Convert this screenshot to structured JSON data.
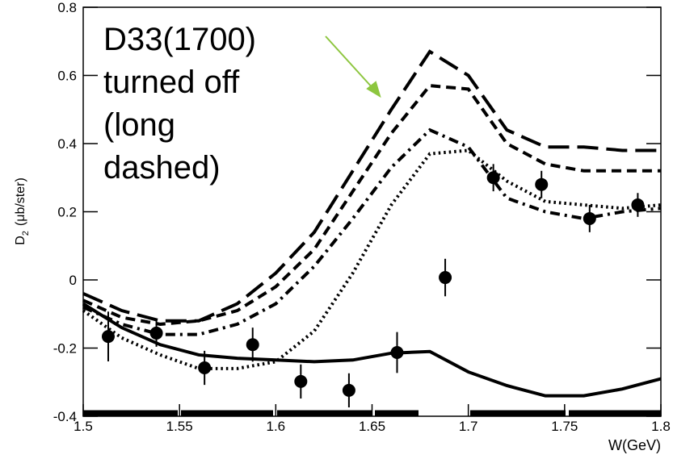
{
  "chart_data": {
    "type": "line",
    "ylabel": [
      "D",
      "2",
      "(μb/ster)"
    ],
    "xlabel": "W(GeV)",
    "annotation": [
      "D33(1700)",
      "turned off",
      "(long",
      "dashed)"
    ],
    "xlim": [
      1.5,
      1.8
    ],
    "xticks": [
      1.5,
      1.55,
      1.6,
      1.65,
      1.7,
      1.75,
      1.8
    ],
    "ylim": [
      -0.4,
      0.8
    ],
    "yticks": [
      -0.4,
      -0.2,
      0,
      0.2,
      0.4,
      0.6,
      0.8
    ],
    "x": [
      1.5,
      1.52,
      1.54,
      1.56,
      1.58,
      1.6,
      1.62,
      1.64,
      1.66,
      1.68,
      1.7,
      1.72,
      1.74,
      1.76,
      1.78,
      1.8
    ],
    "series": [
      {
        "color": "#000000",
        "dash": "long",
        "values": [
          -0.04,
          -0.09,
          -0.12,
          -0.12,
          -0.07,
          0.02,
          0.14,
          0.32,
          0.5,
          0.67,
          0.6,
          0.44,
          0.39,
          0.39,
          0.38,
          0.38
        ]
      },
      {
        "color": "#000000",
        "dash": "short",
        "values": [
          -0.06,
          -0.11,
          -0.13,
          -0.12,
          -0.09,
          -0.02,
          0.09,
          0.26,
          0.43,
          0.57,
          0.56,
          0.4,
          0.34,
          0.32,
          0.32,
          0.32
        ]
      },
      {
        "color": "#000000",
        "dash": "dashdot",
        "values": [
          -0.08,
          -0.13,
          -0.16,
          -0.16,
          -0.13,
          -0.07,
          0.04,
          0.18,
          0.33,
          0.44,
          0.39,
          0.24,
          0.2,
          0.18,
          0.2,
          0.21
        ]
      },
      {
        "color": "#000000",
        "dash": "dotted",
        "values": [
          -0.09,
          -0.17,
          -0.22,
          -0.26,
          -0.26,
          -0.24,
          -0.15,
          0.02,
          0.22,
          0.37,
          0.38,
          0.29,
          0.23,
          0.22,
          0.21,
          0.22
        ]
      },
      {
        "color": "#000000",
        "dash": "solid",
        "values": [
          -0.07,
          -0.14,
          -0.19,
          -0.22,
          -0.23,
          -0.235,
          -0.24,
          -0.235,
          -0.215,
          -0.21,
          -0.27,
          -0.31,
          -0.34,
          -0.34,
          -0.32,
          -0.29
        ]
      }
    ],
    "points": {
      "color": "#000000",
      "x": [
        1.513,
        1.538,
        1.563,
        1.588,
        1.613,
        1.638,
        1.663,
        1.688,
        1.713,
        1.738,
        1.763,
        1.788
      ],
      "values": [
        -0.166,
        -0.156,
        -0.258,
        -0.19,
        -0.298,
        -0.324,
        -0.213,
        0.007,
        0.3,
        0.28,
        0.18,
        0.22
      ],
      "errors": [
        0.073,
        0.04,
        0.05,
        0.05,
        0.05,
        0.05,
        0.06,
        0.055,
        0.04,
        0.04,
        0.04,
        0.035
      ]
    }
  }
}
